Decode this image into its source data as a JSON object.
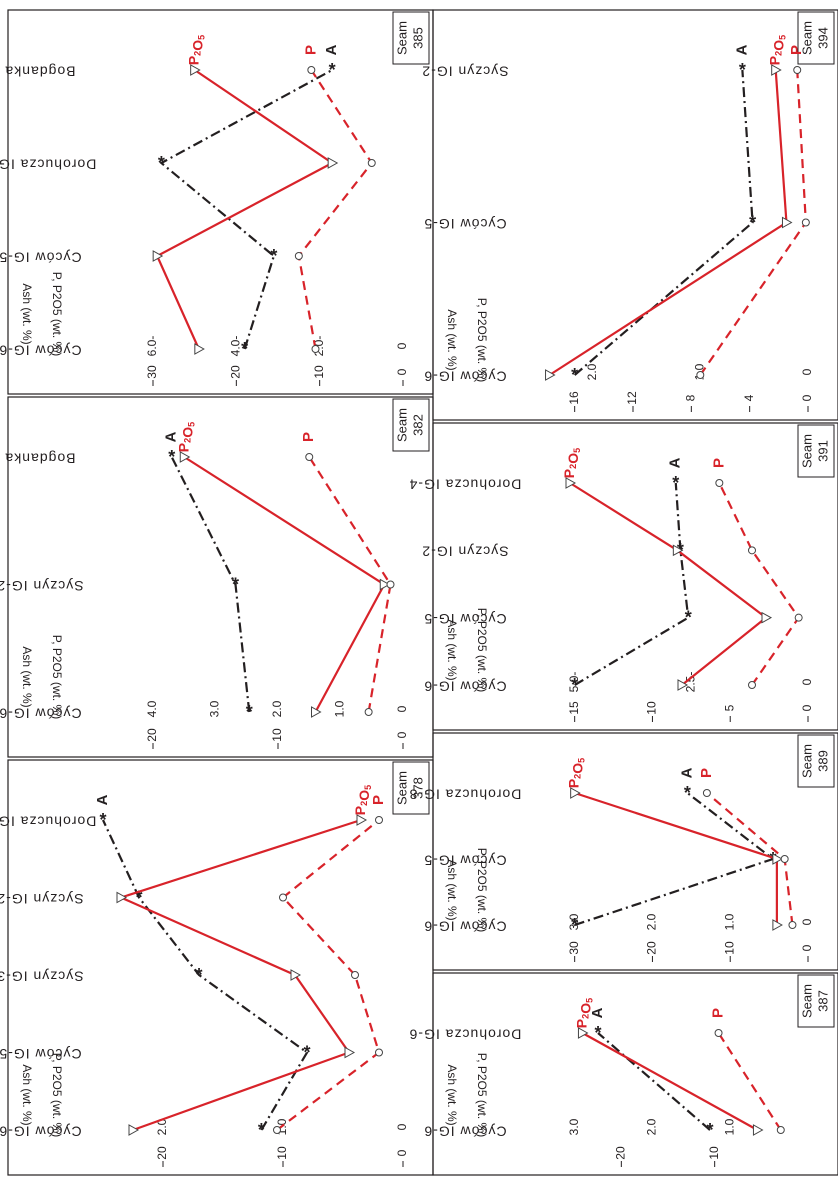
{
  "colors": {
    "ash": "#231f20",
    "phos": "#d8232a",
    "frame": "#231f20"
  },
  "legend_labels": {
    "ash": "A",
    "p": "P",
    "p2o5": "P2O5"
  },
  "axis_labels": {
    "ash": "Ash (wt. %)",
    "phos": "P, P2O5 (wt. %)"
  },
  "chart_data": [
    {
      "type": "line",
      "seam_label": "Seam",
      "seam_number": "378",
      "categories": [
        "Cyców IG-6",
        "Cyców IG-5",
        "Syczyn IG-3",
        "Syczyn IG-2",
        "Dorohucza IG-1"
      ],
      "ash_axis": {
        "ticks": [
          0,
          10,
          20
        ],
        "max": 25
      },
      "phos_axis": {
        "ticks": [
          0,
          1.0,
          2.0
        ],
        "tick_labels": [
          "0",
          "1.0",
          "2.0"
        ],
        "max": 2.5
      },
      "series": [
        {
          "key": "ash",
          "name": "A",
          "axis": "ash",
          "values": [
            11.8,
            8,
            17,
            22,
            25
          ]
        },
        {
          "key": "p2o5",
          "name": "P2O5",
          "axis": "phos",
          "values": [
            2.25,
            0.45,
            0.9,
            2.35,
            0.35
          ]
        },
        {
          "key": "p",
          "name": "P",
          "axis": "phos",
          "values": [
            1.05,
            0.2,
            0.4,
            1.0,
            0.2
          ]
        }
      ]
    },
    {
      "type": "line",
      "seam_label": "Seam",
      "seam_number": "382",
      "categories": [
        "Cyców IG-6",
        "Syczyn IG-2",
        "Bogdanka"
      ],
      "ash_axis": {
        "ticks": [
          0,
          10,
          20
        ],
        "max": 24
      },
      "phos_axis": {
        "ticks": [
          0,
          1.0,
          2.0,
          3.0,
          4.0
        ],
        "tick_labels": [
          "0",
          "1.0",
          "2.0",
          "3.0",
          "4.0"
        ],
        "max": 4.8
      },
      "series": [
        {
          "key": "ash",
          "name": "A",
          "axis": "ash",
          "values": [
            12.3,
            13.4,
            18.5
          ]
        },
        {
          "key": "p2o5",
          "name": "P2O5",
          "axis": "phos",
          "values": [
            1.4,
            0.3,
            3.5
          ]
        },
        {
          "key": "p",
          "name": "P",
          "axis": "phos",
          "values": [
            0.55,
            0.2,
            1.5
          ]
        }
      ]
    },
    {
      "type": "line",
      "seam_label": "Seam",
      "seam_number": "385",
      "categories": [
        "Cyców IG-6",
        "Cyców IG-5",
        "Dorohucza IG-8",
        "Bogdanka"
      ],
      "ash_axis": {
        "ticks": [
          0,
          10,
          20,
          30
        ],
        "max": 36
      },
      "phos_axis": {
        "ticks": [
          0,
          2.0,
          4.0,
          6.0
        ],
        "tick_labels": [
          "0",
          "2.0-",
          "4.0-",
          "6.0-"
        ],
        "max": 7.2
      },
      "series": [
        {
          "key": "ash",
          "name": "A",
          "axis": "ash",
          "values": [
            19,
            15.5,
            29,
            8.5
          ]
        },
        {
          "key": "p2o5",
          "name": "P2O5",
          "axis": "phos",
          "values": [
            4.9,
            5.9,
            1.7,
            5.0
          ]
        },
        {
          "key": "p",
          "name": "P",
          "axis": "phos",
          "values": [
            2.1,
            2.5,
            0.75,
            2.2
          ]
        }
      ]
    },
    {
      "type": "line",
      "seam_label": "Seam",
      "seam_number": "387",
      "categories": [
        "Cyców IG-6",
        "Dorohucza IG-6"
      ],
      "ash_axis": {
        "ticks": [
          10,
          20
        ],
        "max": 30
      },
      "phos_axis": {
        "ticks": [
          1.0,
          2.0,
          3.0
        ],
        "tick_labels": [
          "1.0",
          "2.0",
          "3.0"
        ],
        "max": 3.6
      },
      "series": [
        {
          "key": "ash",
          "name": "A",
          "axis": "ash",
          "values": [
            10.5,
            22.5
          ]
        },
        {
          "key": "p2o5",
          "name": "P2O5",
          "axis": "phos",
          "values": [
            0.65,
            2.9
          ]
        },
        {
          "key": "p",
          "name": "P",
          "axis": "phos",
          "values": [
            0.35,
            1.15
          ]
        }
      ]
    },
    {
      "type": "line",
      "seam_label": "Seam",
      "seam_number": "389",
      "categories": [
        "Cyców IG-6",
        "Cyców IG-5",
        "Dorohucza IG-8"
      ],
      "ash_axis": {
        "ticks": [
          0,
          10,
          20,
          30
        ],
        "max": 36
      },
      "phos_axis": {
        "ticks": [
          0,
          1.0,
          2.0,
          3.0
        ],
        "tick_labels": [
          "0",
          "1.0",
          "2.0",
          "3.0"
        ],
        "max": 3.6
      },
      "series": [
        {
          "key": "ash",
          "name": "A",
          "axis": "ash",
          "values": [
            30,
            4.5,
            15.5
          ]
        },
        {
          "key": "p2o5",
          "name": "P2O5",
          "axis": "phos",
          "values": [
            0.4,
            0.4,
            3.0
          ]
        },
        {
          "key": "p",
          "name": "P",
          "axis": "phos",
          "values": [
            0.2,
            0.3,
            1.3
          ]
        }
      ]
    },
    {
      "type": "line",
      "seam_label": "Seam",
      "seam_number": "391",
      "categories": [
        "Cyców IG-6",
        "Cyców IG-5",
        "Syczyn IG-2",
        "Dorohucza IG-4"
      ],
      "ash_axis": {
        "ticks": [
          0,
          5,
          10,
          15
        ],
        "max": 18
      },
      "phos_axis": {
        "ticks": [
          0,
          2.5,
          5.0
        ],
        "tick_labels": [
          "0",
          "2.5-",
          "5.0-"
        ],
        "max": 6
      },
      "series": [
        {
          "key": "ash",
          "name": "A",
          "axis": "ash",
          "values": [
            15,
            7.7,
            8.2,
            8.5
          ]
        },
        {
          "key": "p2o5",
          "name": "P2O5",
          "axis": "phos",
          "values": [
            2.7,
            0.9,
            2.8,
            5.1
          ]
        },
        {
          "key": "p",
          "name": "P",
          "axis": "phos",
          "values": [
            1.2,
            0.2,
            1.2,
            1.9
          ]
        }
      ]
    },
    {
      "type": "line",
      "seam_label": "Seam",
      "seam_number": "394",
      "categories": [
        "Cyców IG-6",
        "Cyców IG-5",
        "Syczyn IG-2"
      ],
      "ash_axis": {
        "ticks": [
          0,
          4,
          8,
          12,
          16
        ],
        "max": 19.2
      },
      "phos_axis": {
        "ticks": [
          0,
          1.0,
          2.0
        ],
        "tick_labels": [
          "0",
          "1.0",
          "2.0"
        ],
        "max": 2.6
      },
      "series": [
        {
          "key": "ash",
          "name": "A",
          "axis": "ash",
          "values": [
            16,
            3.8,
            4.5
          ]
        },
        {
          "key": "p2o5",
          "name": "P2O5",
          "axis": "phos",
          "values": [
            2.4,
            0.2,
            0.3
          ]
        },
        {
          "key": "p",
          "name": "P",
          "axis": "phos",
          "values": [
            1.0,
            0.02,
            0.1
          ]
        }
      ]
    }
  ]
}
